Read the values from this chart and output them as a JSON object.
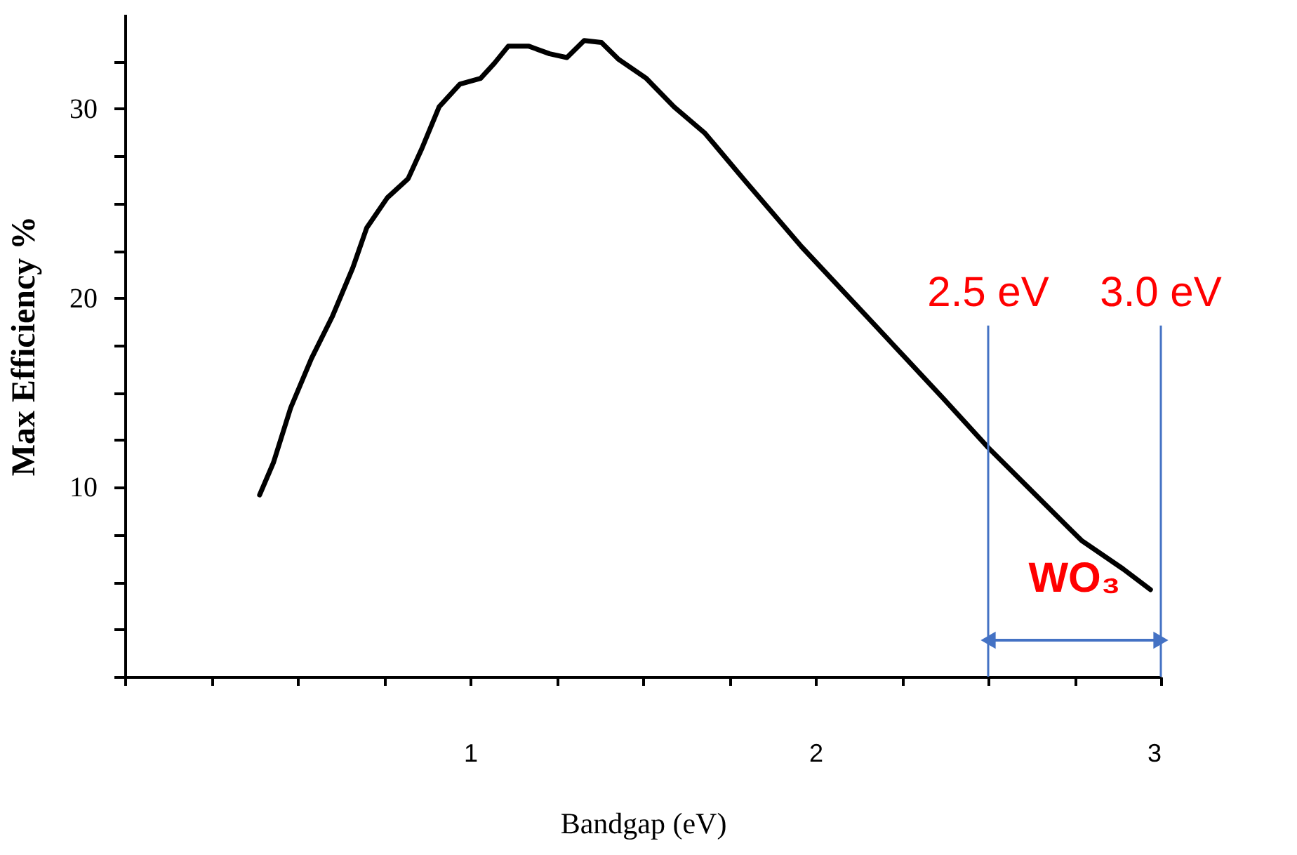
{
  "chart_data": {
    "type": "line",
    "xlabel": "Bandgap (eV)",
    "ylabel": "Max Efficiency %",
    "x": [
      0.39,
      0.43,
      0.48,
      0.54,
      0.6,
      0.66,
      0.7,
      0.76,
      0.82,
      0.86,
      0.91,
      0.97,
      1.03,
      1.07,
      1.11,
      1.17,
      1.23,
      1.28,
      1.33,
      1.38,
      1.43,
      1.51,
      1.59,
      1.68,
      1.8,
      1.96,
      2.16,
      2.37,
      2.5,
      2.61,
      2.77,
      2.89,
      2.97
    ],
    "series": [
      {
        "color": "#000000",
        "values": [
          9.6,
          11.3,
          14.2,
          16.8,
          19.0,
          21.6,
          23.7,
          25.3,
          26.3,
          27.9,
          30.1,
          31.3,
          31.6,
          32.4,
          33.3,
          33.3,
          32.9,
          32.7,
          33.6,
          33.5,
          32.6,
          31.6,
          30.1,
          28.7,
          26.1,
          22.7,
          18.8,
          14.7,
          12.1,
          10.1,
          7.2,
          5.7,
          4.6
        ]
      }
    ],
    "xlim": [
      0,
      3
    ],
    "ylim": [
      0,
      35
    ],
    "xticks": [
      {
        "value": 0,
        "label": null
      },
      {
        "value": 0.25,
        "label": null
      },
      {
        "value": 0.5,
        "label": null
      },
      {
        "value": 0.75,
        "label": null
      },
      1,
      {
        "value": 1.25,
        "label": null
      },
      {
        "value": 1.5,
        "label": null
      },
      {
        "value": 1.75,
        "label": null
      },
      2,
      {
        "value": 2.25,
        "label": null
      },
      {
        "value": 2.5,
        "label": null
      },
      {
        "value": 2.75,
        "label": null
      },
      3
    ],
    "yticks": [
      {
        "value": 0,
        "label": null
      },
      {
        "value": 2.5,
        "label": null
      },
      {
        "value": 5,
        "label": null
      },
      {
        "value": 7.5,
        "label": null
      },
      10,
      {
        "value": 12.5,
        "label": null
      },
      {
        "value": 15,
        "label": null
      },
      {
        "value": 17.5,
        "label": null
      },
      20,
      {
        "value": 22.5,
        "label": null
      },
      {
        "value": 25,
        "label": null
      },
      {
        "value": 27.5,
        "label": null
      },
      30,
      {
        "value": 32.5,
        "label": null
      }
    ],
    "ref_lines": [
      {
        "axis": "x",
        "value": 2.5,
        "label": "2.5 eV",
        "color": "#4472c4"
      },
      {
        "axis": "x",
        "value": 3,
        "label": "3.0 eV",
        "color": "#4472c4"
      }
    ],
    "annotations": [
      "WO₃"
    ],
    "grid": false,
    "marker": "none",
    "line_style": "solid"
  }
}
